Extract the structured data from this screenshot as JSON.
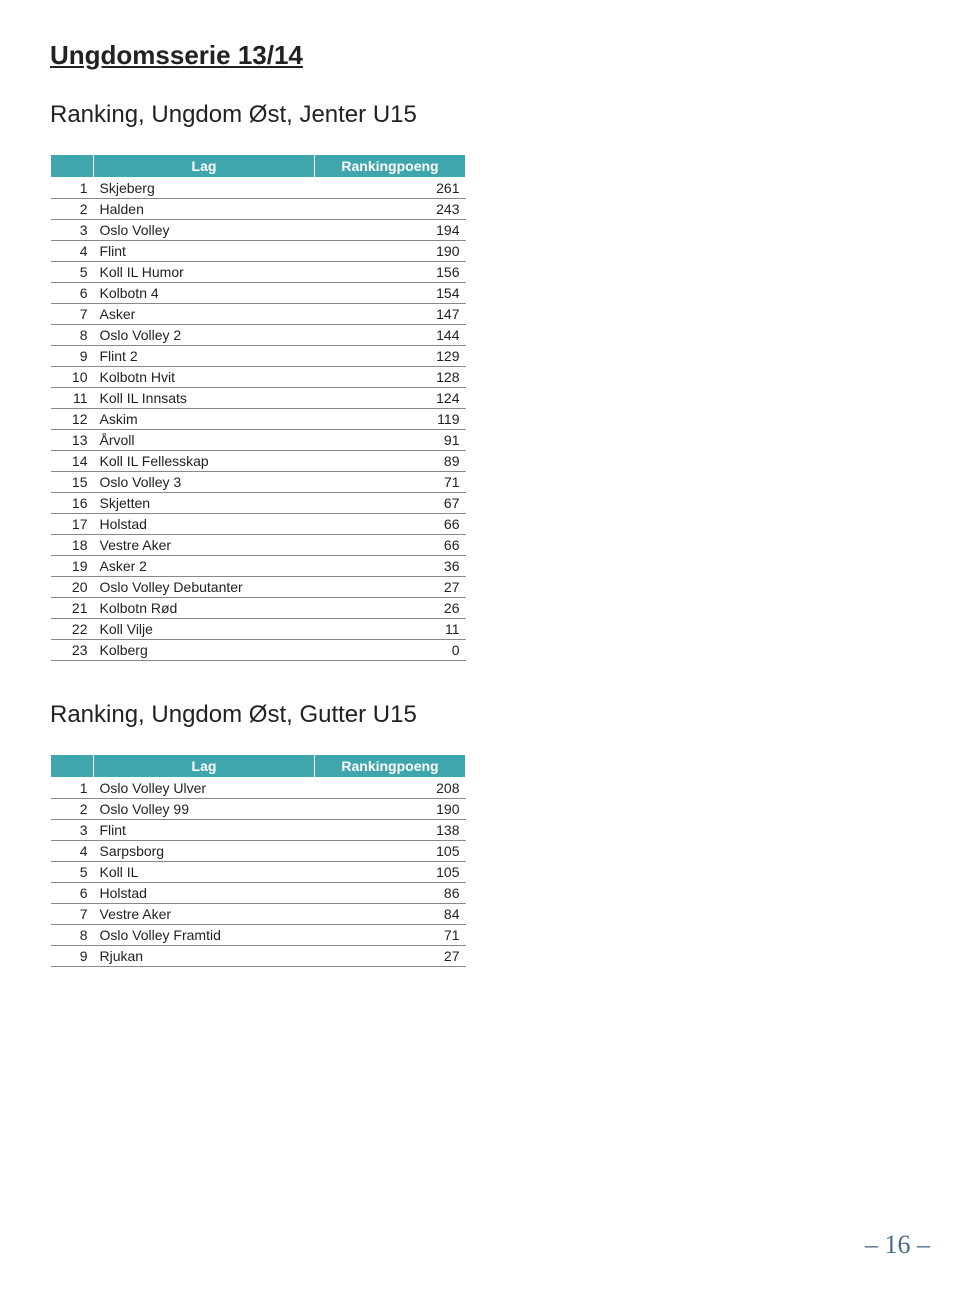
{
  "page_title": "Ungdomsserie 13/14",
  "header_bg": "#3fa6ad",
  "header_fg": "#ffffff",
  "columns": {
    "rank": "",
    "lag": "Lag",
    "points": "Rankingpoeng"
  },
  "sections": [
    {
      "title": "Ranking, Ungdom Øst, Jenter U15",
      "rows": [
        {
          "rank": 1,
          "team": "Skjeberg",
          "points": 261
        },
        {
          "rank": 2,
          "team": "Halden",
          "points": 243
        },
        {
          "rank": 3,
          "team": "Oslo Volley",
          "points": 194
        },
        {
          "rank": 4,
          "team": "Flint",
          "points": 190
        },
        {
          "rank": 5,
          "team": "Koll IL Humor",
          "points": 156
        },
        {
          "rank": 6,
          "team": "Kolbotn 4",
          "points": 154
        },
        {
          "rank": 7,
          "team": "Asker",
          "points": 147
        },
        {
          "rank": 8,
          "team": "Oslo Volley 2",
          "points": 144
        },
        {
          "rank": 9,
          "team": "Flint 2",
          "points": 129
        },
        {
          "rank": 10,
          "team": "Kolbotn Hvit",
          "points": 128
        },
        {
          "rank": 11,
          "team": "Koll IL Innsats",
          "points": 124
        },
        {
          "rank": 12,
          "team": "Askim",
          "points": 119
        },
        {
          "rank": 13,
          "team": "Årvoll",
          "points": 91
        },
        {
          "rank": 14,
          "team": "Koll IL Fellesskap",
          "points": 89
        },
        {
          "rank": 15,
          "team": "Oslo Volley 3",
          "points": 71
        },
        {
          "rank": 16,
          "team": "Skjetten",
          "points": 67
        },
        {
          "rank": 17,
          "team": "Holstad",
          "points": 66
        },
        {
          "rank": 18,
          "team": "Vestre Aker",
          "points": 66
        },
        {
          "rank": 19,
          "team": "Asker 2",
          "points": 36
        },
        {
          "rank": 20,
          "team": "Oslo Volley Debutanter",
          "points": 27
        },
        {
          "rank": 21,
          "team": "Kolbotn Rød",
          "points": 26
        },
        {
          "rank": 22,
          "team": "Koll Vilje",
          "points": 11
        },
        {
          "rank": 23,
          "team": "Kolberg",
          "points": 0
        }
      ]
    },
    {
      "title": "Ranking, Ungdom Øst, Gutter U15",
      "rows": [
        {
          "rank": 1,
          "team": "Oslo Volley Ulver",
          "points": 208
        },
        {
          "rank": 2,
          "team": "Oslo Volley 99",
          "points": 190
        },
        {
          "rank": 3,
          "team": "Flint",
          "points": 138
        },
        {
          "rank": 4,
          "team": "Sarpsborg",
          "points": 105
        },
        {
          "rank": 5,
          "team": "Koll IL",
          "points": 105
        },
        {
          "rank": 6,
          "team": "Holstad",
          "points": 86
        },
        {
          "rank": 7,
          "team": "Vestre Aker",
          "points": 84
        },
        {
          "rank": 8,
          "team": "Oslo Volley Framtid",
          "points": 71
        },
        {
          "rank": 9,
          "team": "Rjukan",
          "points": 27
        }
      ]
    }
  ],
  "page_number": "– 16 –"
}
